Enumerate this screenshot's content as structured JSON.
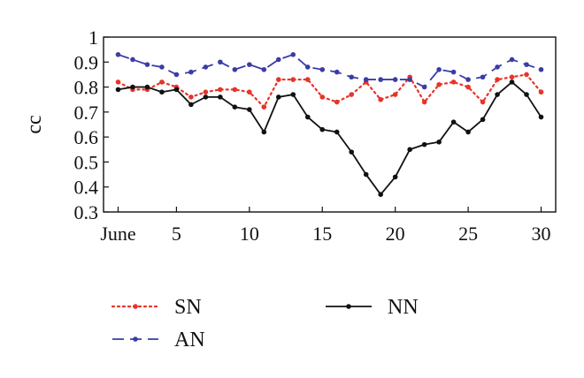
{
  "chart_data": {
    "type": "line",
    "title": "",
    "xlabel": "",
    "ylabel": "cc",
    "x": [
      1,
      2,
      3,
      4,
      5,
      6,
      7,
      8,
      9,
      10,
      11,
      12,
      13,
      14,
      15,
      16,
      17,
      18,
      19,
      20,
      21,
      22,
      23,
      24,
      25,
      26,
      27,
      28,
      29,
      30
    ],
    "xlim": [
      0,
      31
    ],
    "ylim": [
      0.3,
      1.0
    ],
    "xticks": [
      {
        "value": 1,
        "label": "June"
      },
      {
        "value": 5,
        "label": "5"
      },
      {
        "value": 10,
        "label": "10"
      },
      {
        "value": 15,
        "label": "15"
      },
      {
        "value": 20,
        "label": "20"
      },
      {
        "value": 25,
        "label": "25"
      },
      {
        "value": 30,
        "label": "30"
      }
    ],
    "yticks": [
      {
        "value": 0.3,
        "label": "0.3"
      },
      {
        "value": 0.4,
        "label": "0.4"
      },
      {
        "value": 0.5,
        "label": "0.5"
      },
      {
        "value": 0.6,
        "label": "0.6"
      },
      {
        "value": 0.7,
        "label": "0.7"
      },
      {
        "value": 0.8,
        "label": "0.8"
      },
      {
        "value": 0.9,
        "label": "0.9"
      },
      {
        "value": 1.0,
        "label": "1"
      }
    ],
    "grid": false,
    "legend_position": "bottom",
    "series": [
      {
        "name": "SN",
        "color": "#e8332a",
        "line_style": "dotted",
        "values": [
          0.82,
          0.79,
          0.79,
          0.82,
          0.8,
          0.76,
          0.78,
          0.79,
          0.79,
          0.78,
          0.72,
          0.83,
          0.83,
          0.83,
          0.76,
          0.74,
          0.77,
          0.82,
          0.75,
          0.77,
          0.84,
          0.74,
          0.81,
          0.82,
          0.8,
          0.74,
          0.83,
          0.84,
          0.85,
          0.78
        ]
      },
      {
        "name": "AN",
        "color": "#3a3ca8",
        "line_style": "dashed",
        "values": [
          0.93,
          0.91,
          0.89,
          0.88,
          0.85,
          0.86,
          0.88,
          0.9,
          0.87,
          0.89,
          0.87,
          0.91,
          0.93,
          0.88,
          0.87,
          0.86,
          0.84,
          0.83,
          0.83,
          0.83,
          0.83,
          0.8,
          0.87,
          0.86,
          0.83,
          0.84,
          0.88,
          0.91,
          0.89,
          0.87
        ]
      },
      {
        "name": "NN",
        "color": "#111111",
        "line_style": "solid",
        "values": [
          0.79,
          0.8,
          0.8,
          0.78,
          0.79,
          0.73,
          0.76,
          0.76,
          0.72,
          0.71,
          0.62,
          0.76,
          0.77,
          0.68,
          0.63,
          0.62,
          0.54,
          0.45,
          0.37,
          0.44,
          0.55,
          0.57,
          0.58,
          0.66,
          0.62,
          0.67,
          0.77,
          0.82,
          0.77,
          0.68
        ]
      }
    ]
  }
}
